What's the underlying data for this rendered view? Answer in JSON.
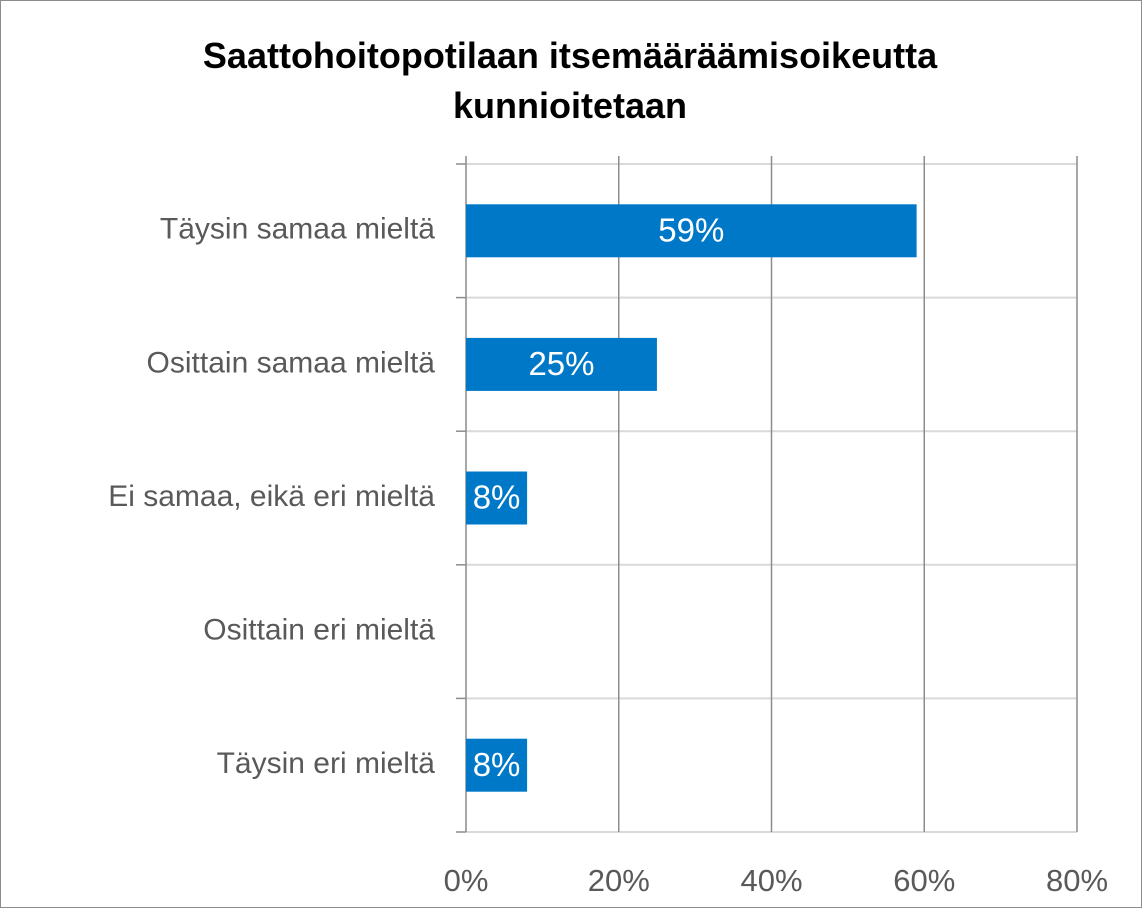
{
  "chart_data": {
    "type": "barh",
    "title": "Saattohoitopotilaan itsemääräämisoikeutta kunnioitetaan",
    "categories": [
      "Täysin samaa mieltä",
      "Osittain samaa mieltä",
      "Ei samaa, eikä eri mieltä",
      "Osittain eri mieltä",
      "Täysin eri mieltä"
    ],
    "values": [
      59,
      25,
      8,
      null,
      8
    ],
    "value_labels": [
      "59%",
      "25%",
      "8%",
      null,
      "8%"
    ],
    "color": "#0078c8",
    "xlim": [
      0,
      80
    ],
    "xticks": [
      {
        "value": 0,
        "label": "0%"
      },
      {
        "value": 20,
        "label": "20%"
      },
      {
        "value": 40,
        "label": "40%"
      },
      {
        "value": 60,
        "label": "60%"
      },
      {
        "value": 80,
        "label": "80%"
      }
    ],
    "grid": true
  }
}
